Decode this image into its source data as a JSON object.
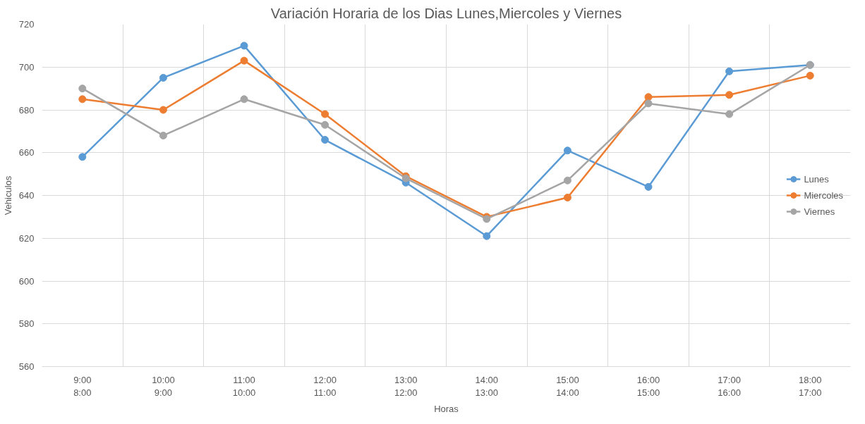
{
  "chart_data": {
    "type": "line",
    "title": "Variación Horaria de los Dias Lunes,Miercoles y Viernes",
    "xlabel": "Horas",
    "ylabel": "Vehiculos",
    "categories": [
      "9:00\n8:00",
      "10:00\n9:00",
      "11:00\n10:00",
      "12:00\n11:00",
      "13:00\n12:00",
      "14:00\n13:00",
      "15:00\n14:00",
      "16:00\n15:00",
      "17:00\n16:00",
      "18:00\n17:00"
    ],
    "series": [
      {
        "name": "Lunes",
        "color": "#5b9bd5",
        "values": [
          658,
          695,
          710,
          666,
          646,
          621,
          661,
          644,
          698,
          701
        ]
      },
      {
        "name": "Miercoles",
        "color": "#ed7d31",
        "values": [
          685,
          680,
          703,
          678,
          649,
          630,
          639,
          686,
          687,
          696
        ]
      },
      {
        "name": "Viernes",
        "color": "#a5a5a5",
        "values": [
          690,
          668,
          685,
          673,
          648,
          629,
          647,
          683,
          678,
          701
        ]
      }
    ],
    "ylim": [
      560,
      720
    ],
    "yticks": [
      560,
      580,
      600,
      620,
      640,
      660,
      680,
      700,
      720
    ],
    "grid": true,
    "legend": "right",
    "marker": "circle",
    "line_style": "solid"
  }
}
